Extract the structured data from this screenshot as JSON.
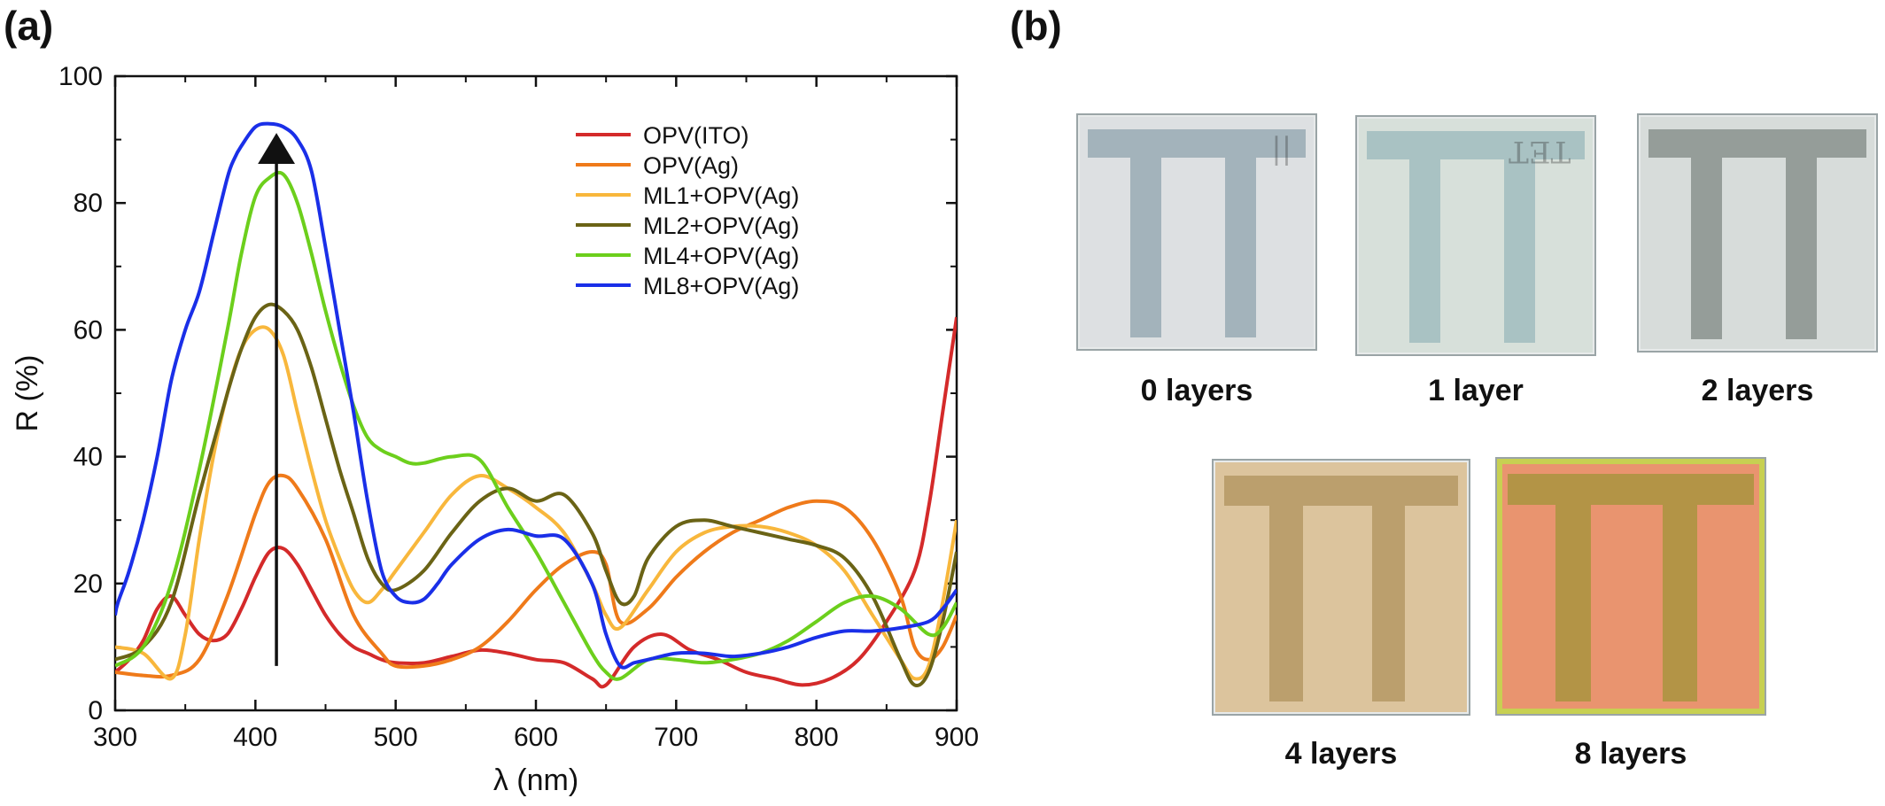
{
  "panels": {
    "a": "(a)",
    "b": "(b)"
  },
  "chart_data": {
    "type": "line",
    "xlabel": "λ (nm)",
    "ylabel": "R (%)",
    "xlim": [
      300,
      900
    ],
    "ylim": [
      0,
      100
    ],
    "xticks": [
      300,
      400,
      500,
      600,
      700,
      800,
      900
    ],
    "yticks": [
      0,
      20,
      40,
      60,
      80,
      100
    ],
    "grid": false,
    "legend": "top-right",
    "annotation": "upward arrow at ~415 nm from R≈7 to R≈90",
    "arrow": {
      "x": 415,
      "y_from": 7,
      "y_to": 90
    },
    "series": [
      {
        "name": "OPV(ITO)",
        "color": "#d42a2a",
        "x": [
          300,
          310,
          320,
          330,
          340,
          350,
          360,
          370,
          380,
          390,
          400,
          410,
          420,
          430,
          440,
          450,
          460,
          470,
          480,
          490,
          500,
          520,
          540,
          560,
          580,
          600,
          620,
          640,
          650,
          670,
          690,
          710,
          730,
          750,
          770,
          790,
          810,
          830,
          850,
          870,
          880,
          890,
          900
        ],
        "y": [
          6,
          8,
          11,
          16,
          18,
          15,
          12,
          11,
          12,
          16,
          21,
          25,
          25.5,
          23,
          19,
          15,
          12,
          10,
          9,
          8,
          7.5,
          7.5,
          8.5,
          9.5,
          9,
          8,
          7.5,
          5,
          4,
          10,
          12,
          9.5,
          8,
          6,
          5,
          4,
          5,
          8,
          14,
          22,
          32,
          47,
          62
        ]
      },
      {
        "name": "OPV(Ag)",
        "color": "#ef7a1a",
        "x": [
          300,
          320,
          340,
          360,
          380,
          400,
          410,
          420,
          430,
          450,
          470,
          490,
          500,
          520,
          540,
          560,
          580,
          600,
          620,
          640,
          650,
          660,
          680,
          700,
          720,
          740,
          760,
          780,
          800,
          820,
          840,
          860,
          870,
          880,
          890,
          900
        ],
        "y": [
          6,
          5.5,
          5.5,
          8,
          18,
          31,
          36,
          37,
          35,
          27,
          15,
          9,
          7,
          7,
          8,
          10,
          14,
          19,
          23,
          25,
          23,
          14,
          16,
          21,
          25,
          28,
          30,
          32,
          33,
          32,
          27,
          18,
          10,
          8,
          10,
          15
        ]
      },
      {
        "name": "ML1+OPV(Ag)",
        "color": "#f8b73c",
        "x": [
          300,
          320,
          340,
          350,
          360,
          370,
          380,
          390,
          400,
          410,
          420,
          430,
          440,
          450,
          460,
          470,
          480,
          490,
          500,
          520,
          540,
          560,
          580,
          600,
          620,
          640,
          650,
          660,
          680,
          700,
          720,
          740,
          760,
          780,
          800,
          820,
          840,
          860,
          870,
          880,
          890,
          900
        ],
        "y": [
          10,
          9,
          5,
          12,
          27,
          40,
          50,
          57,
          60,
          60,
          56,
          47,
          38,
          30,
          24,
          19,
          17,
          19,
          22,
          28,
          34,
          37,
          35,
          32,
          28,
          20,
          15,
          13,
          19,
          25,
          28,
          29,
          29,
          28,
          26,
          22,
          15,
          8,
          5,
          7,
          17,
          30
        ]
      },
      {
        "name": "ML2+OPV(Ag)",
        "color": "#6a6315",
        "x": [
          300,
          320,
          340,
          360,
          380,
          390,
          400,
          410,
          420,
          430,
          440,
          450,
          460,
          470,
          480,
          490,
          500,
          520,
          540,
          560,
          580,
          600,
          620,
          640,
          650,
          660,
          670,
          680,
          700,
          720,
          740,
          760,
          780,
          800,
          820,
          840,
          860,
          870,
          880,
          890,
          900
        ],
        "y": [
          8,
          10,
          17,
          34,
          50,
          57,
          62,
          64,
          63,
          60,
          54,
          46,
          38,
          31,
          24,
          20,
          19,
          22,
          28,
          33,
          35,
          33,
          34,
          28,
          22,
          17,
          18,
          24,
          29,
          30,
          29,
          28,
          27,
          26,
          24,
          18,
          8,
          4,
          6,
          14,
          25
        ]
      },
      {
        "name": "ML4+OPV(Ag)",
        "color": "#6ccf1c",
        "x": [
          300,
          320,
          340,
          360,
          380,
          390,
          400,
          410,
          420,
          430,
          440,
          450,
          460,
          470,
          480,
          490,
          500,
          510,
          520,
          540,
          560,
          580,
          600,
          620,
          640,
          650,
          660,
          680,
          700,
          720,
          740,
          760,
          780,
          800,
          820,
          840,
          860,
          880,
          890,
          900
        ],
        "y": [
          7,
          10,
          20,
          38,
          60,
          72,
          81,
          84,
          84.5,
          80,
          72,
          63,
          55,
          48,
          43,
          41,
          40,
          39,
          39,
          40,
          39.5,
          32,
          25,
          17,
          9,
          6,
          5,
          8,
          8,
          7.5,
          8,
          9,
          11,
          14,
          17,
          18,
          16,
          12,
          13,
          17
        ]
      },
      {
        "name": "ML8+OPV(Ag)",
        "color": "#1a2fe8",
        "x": [
          300,
          302,
          310,
          320,
          330,
          340,
          350,
          360,
          370,
          380,
          385,
          390,
          400,
          410,
          420,
          430,
          440,
          450,
          460,
          470,
          480,
          490,
          500,
          510,
          520,
          530,
          540,
          560,
          580,
          600,
          620,
          640,
          650,
          660,
          670,
          680,
          700,
          720,
          740,
          760,
          780,
          800,
          820,
          840,
          860,
          880,
          890,
          900
        ],
        "y": [
          15,
          17,
          22,
          30,
          40,
          52,
          60,
          66,
          75,
          84,
          87,
          89,
          92,
          92.5,
          92,
          90,
          85,
          73,
          60,
          47,
          33,
          22,
          18,
          17,
          17.5,
          20,
          23,
          27,
          28.5,
          27.5,
          27,
          20,
          12,
          7,
          7.5,
          8,
          9,
          9,
          8.5,
          9,
          10,
          11.5,
          12.5,
          12.5,
          13,
          14,
          16,
          19
        ]
      }
    ]
  },
  "samples": [
    {
      "caption": "0 layers",
      "scribble": "||"
    },
    {
      "caption": "1 layer",
      "scribble": "TET"
    },
    {
      "caption": "2 layers",
      "scribble": ""
    },
    {
      "caption": "4 layers",
      "scribble": ""
    },
    {
      "caption": "8 layers",
      "scribble": ""
    }
  ],
  "colors": {
    "axis": "#111111",
    "sample0_bg": "#dde0e2",
    "sample0_t": "#a3b3bb",
    "sample1_bg": "#d7e0da",
    "sample1_t": "#a9c2c3",
    "sample2_bg": "#d7dcda",
    "sample2_t": "#959d99",
    "sample4_bg": "#dcc49d",
    "sample4_t": "#bb9f6d",
    "sample8_bg": "#e9946f",
    "sample8_t": "#b39446",
    "sample8_rim": "#c7d052"
  }
}
